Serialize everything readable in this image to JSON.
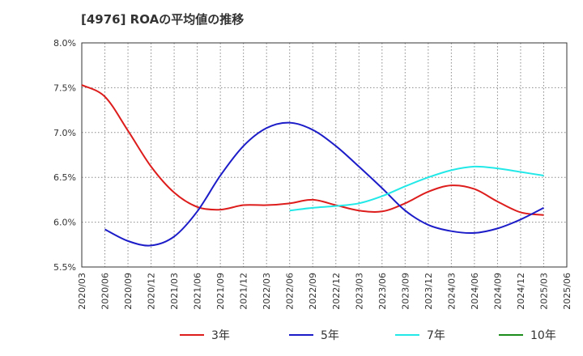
{
  "chart_data": {
    "type": "line",
    "title": "[4976]  ROAの平均値の推移",
    "x": [
      "2020/03",
      "2020/06",
      "2020/09",
      "2020/12",
      "2021/03",
      "2021/06",
      "2021/09",
      "2021/12",
      "2022/03",
      "2022/06",
      "2022/09",
      "2022/12",
      "2023/03",
      "2023/06",
      "2023/09",
      "2023/12",
      "2024/03",
      "2024/06",
      "2024/09",
      "2024/12",
      "2025/03",
      "2025/06"
    ],
    "ylim": [
      5.5,
      8.0
    ],
    "yticks": [
      "5.5%",
      "6.0%",
      "6.5%",
      "7.0%",
      "7.5%",
      "8.0%"
    ],
    "ytick_values": [
      5.5,
      6.0,
      6.5,
      7.0,
      7.5,
      8.0
    ],
    "grid": true,
    "legend_position": "bottom",
    "series": [
      {
        "name": "3年",
        "color": "#dd1c1c",
        "values": [
          7.53,
          7.4,
          7.02,
          6.62,
          6.33,
          6.17,
          6.14,
          6.19,
          6.19,
          6.21,
          6.25,
          6.19,
          6.13,
          6.12,
          6.21,
          6.34,
          6.41,
          6.37,
          6.23,
          6.11,
          6.08,
          null
        ]
      },
      {
        "name": "5年",
        "color": "#1c1cc8",
        "values": [
          null,
          5.92,
          5.79,
          5.74,
          5.84,
          6.12,
          6.52,
          6.85,
          7.05,
          7.11,
          7.03,
          6.85,
          6.62,
          6.38,
          6.13,
          5.97,
          5.9,
          5.88,
          5.93,
          6.03,
          6.16,
          null
        ]
      },
      {
        "name": "7年",
        "color": "#22e8e8",
        "values": [
          null,
          null,
          null,
          null,
          null,
          null,
          null,
          null,
          null,
          6.13,
          6.16,
          6.18,
          6.21,
          6.29,
          6.4,
          6.5,
          6.58,
          6.62,
          6.6,
          6.56,
          6.52,
          null
        ]
      },
      {
        "name": "10年",
        "color": "#1c8c1c",
        "values": [
          null,
          null,
          null,
          null,
          null,
          null,
          null,
          null,
          null,
          null,
          null,
          null,
          null,
          null,
          null,
          null,
          null,
          null,
          null,
          null,
          null,
          null
        ]
      }
    ]
  }
}
